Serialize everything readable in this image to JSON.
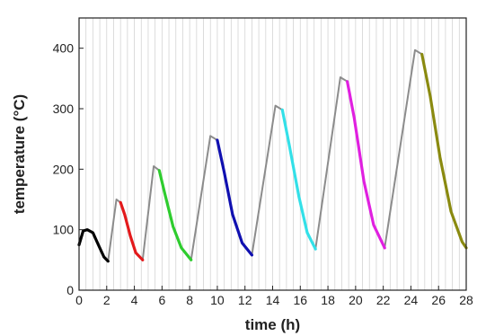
{
  "chart_data": {
    "type": "line",
    "xlabel": "time (h)",
    "ylabel": "temperature (°C)",
    "xlim": [
      0,
      28
    ],
    "ylim": [
      0,
      450
    ],
    "xticks": [
      0,
      2,
      4,
      6,
      8,
      10,
      12,
      14,
      16,
      18,
      20,
      22,
      24,
      26,
      28
    ],
    "yticks": [
      0,
      100,
      200,
      300,
      400
    ],
    "grid_x": true,
    "grid_y": false,
    "heating_color": "#8c8c8c",
    "series": [
      {
        "color": "#000000",
        "x": [
          0.0,
          0.3,
          0.6,
          1.0,
          1.4,
          1.8,
          2.1
        ],
        "y": [
          75,
          98,
          100,
          95,
          75,
          55,
          48
        ]
      },
      {
        "color": "#e31a1c",
        "x": [
          3.0,
          3.3,
          3.7,
          4.1,
          4.6
        ],
        "y": [
          145,
          125,
          90,
          62,
          50
        ]
      },
      {
        "color": "#2ecc2e",
        "x": [
          5.8,
          6.2,
          6.8,
          7.4,
          8.1
        ],
        "y": [
          198,
          160,
          105,
          70,
          50
        ]
      },
      {
        "color": "#1010b0",
        "x": [
          10.0,
          10.5,
          11.1,
          11.8,
          12.5
        ],
        "y": [
          248,
          195,
          125,
          78,
          58
        ]
      },
      {
        "color": "#33e0e8",
        "x": [
          14.7,
          15.2,
          15.9,
          16.5,
          17.1
        ],
        "y": [
          298,
          240,
          155,
          95,
          68
        ]
      },
      {
        "color": "#e020e0",
        "x": [
          19.4,
          19.9,
          20.6,
          21.3,
          22.1
        ],
        "y": [
          345,
          285,
          180,
          108,
          70
        ]
      },
      {
        "color": "#8a8a10",
        "x": [
          24.8,
          25.4,
          26.1,
          26.9,
          27.7,
          28.0
        ],
        "y": [
          390,
          320,
          220,
          130,
          80,
          70
        ]
      }
    ],
    "heating": [
      {
        "x": [
          2.1,
          2.7,
          3.0
        ],
        "y": [
          48,
          150,
          145
        ]
      },
      {
        "x": [
          4.6,
          5.4,
          5.8
        ],
        "y": [
          50,
          205,
          198
        ]
      },
      {
        "x": [
          8.1,
          9.5,
          10.0
        ],
        "y": [
          50,
          255,
          248
        ]
      },
      {
        "x": [
          12.5,
          14.2,
          14.7
        ],
        "y": [
          58,
          305,
          298
        ]
      },
      {
        "x": [
          17.1,
          18.9,
          19.4
        ],
        "y": [
          68,
          352,
          345
        ]
      },
      {
        "x": [
          22.1,
          24.3,
          24.8
        ],
        "y": [
          70,
          397,
          390
        ]
      }
    ]
  }
}
